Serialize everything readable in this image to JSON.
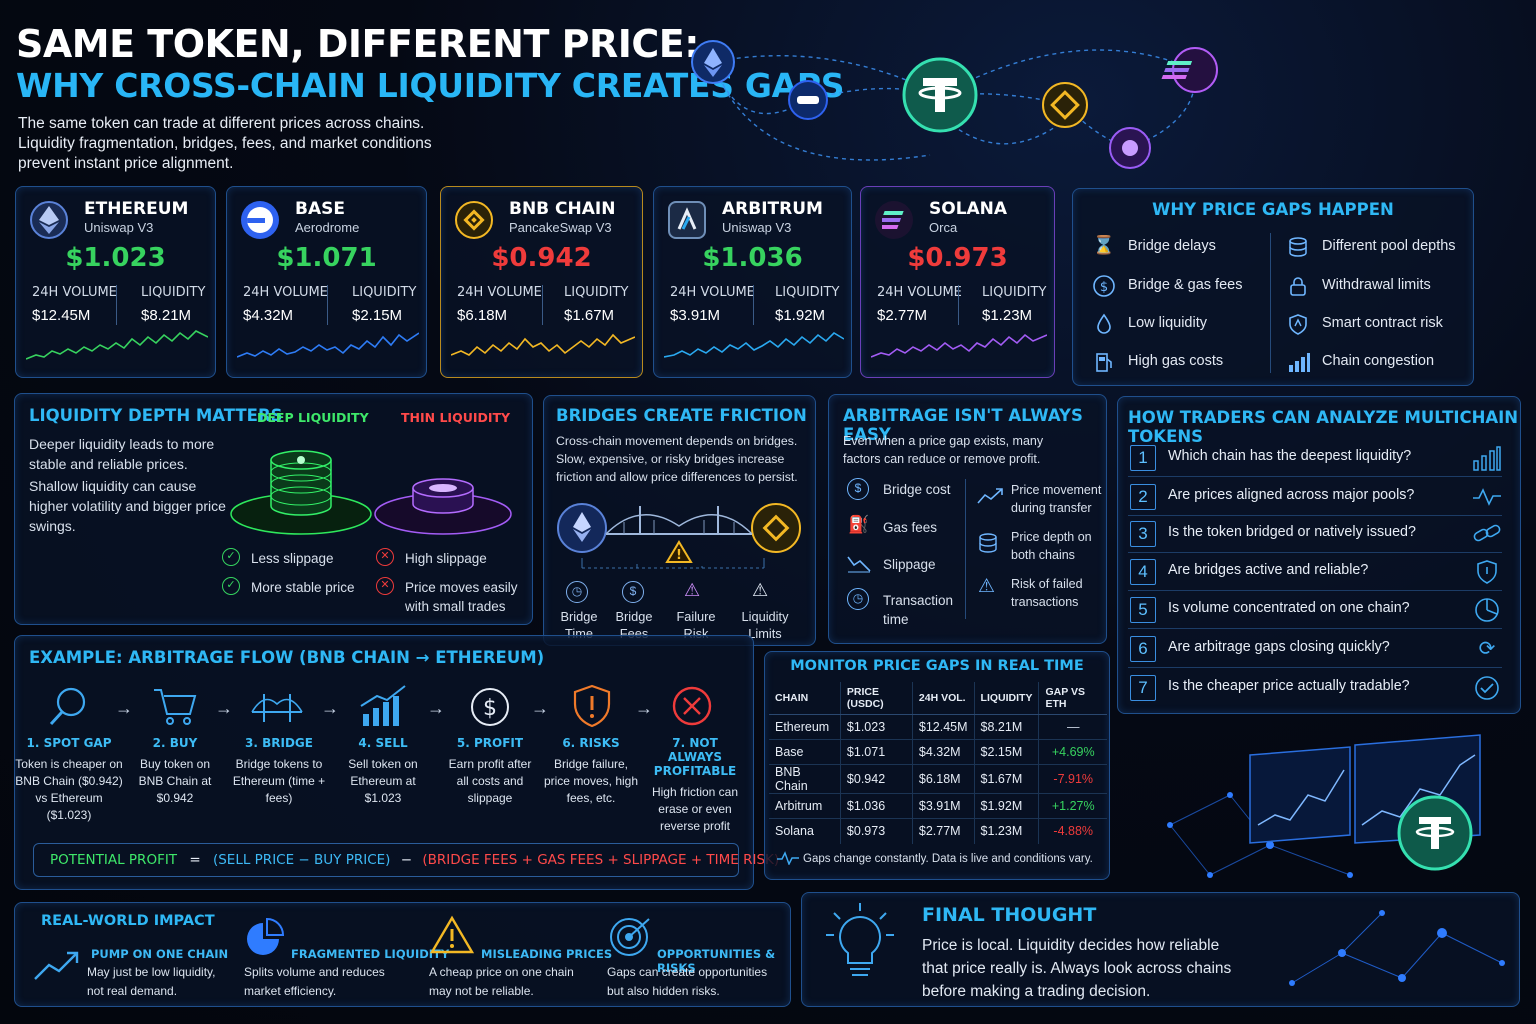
{
  "header": {
    "title_line1": "SAME TOKEN, DIFFERENT PRICE:",
    "title_line2": "WHY CROSS-CHAIN LIQUIDITY CREATES GAPS",
    "intro": "The same token can trade at different prices across chains. Liquidity fragmentation, bridges, fees, and market conditions prevent instant price alignment."
  },
  "chains": [
    {
      "name": "ETHEREUM",
      "dex": "Uniswap V3",
      "price": "$1.023",
      "price_color": "#37d35f",
      "vol_label": "24H VOLUME",
      "vol": "$12.45M",
      "liq_label": "LIQUIDITY",
      "liq": "$8.21M",
      "spark_color": "#37d35f",
      "border": "#2a5c9a"
    },
    {
      "name": "BASE",
      "dex": "Aerodrome",
      "price": "$1.071",
      "price_color": "#37d35f",
      "vol_label": "24H VOLUME",
      "vol": "$4.32M",
      "liq_label": "LIQUIDITY",
      "liq": "$2.15M",
      "spark_color": "#2e7cf6",
      "border": "#2a5c9a"
    },
    {
      "name": "BNB CHAIN",
      "dex": "PancakeSwap V3",
      "price": "$0.942",
      "price_color": "#ef3b3b",
      "vol_label": "24H VOLUME",
      "vol": "$6.18M",
      "liq_label": "LIQUIDITY",
      "liq": "$1.67M",
      "spark_color": "#f3b824",
      "border": "#b88a1e"
    },
    {
      "name": "ARBITRUM",
      "dex": "Uniswap V3",
      "price": "$1.036",
      "price_color": "#37d35f",
      "vol_label": "24H VOLUME",
      "vol": "$3.91M",
      "liq_label": "LIQUIDITY",
      "liq": "$1.92M",
      "spark_color": "#2aa9f0",
      "border": "#2a5c9a"
    },
    {
      "name": "SOLANA",
      "dex": "Orca",
      "price": "$0.973",
      "price_color": "#ef3b3b",
      "vol_label": "24H VOLUME",
      "vol": "$2.77M",
      "liq_label": "LIQUIDITY",
      "liq": "$1.23M",
      "spark_color": "#a35cf5",
      "border": "#7a3fc4"
    }
  ],
  "why": {
    "title": "WHY PRICE GAPS HAPPEN",
    "left": [
      {
        "icon": "hourglass-icon",
        "label": "Bridge delays"
      },
      {
        "icon": "dollar-icon",
        "label": "Bridge & gas fees"
      },
      {
        "icon": "droplet-icon",
        "label": "Low liquidity"
      },
      {
        "icon": "gas-pump-icon",
        "label": "High gas costs"
      }
    ],
    "right": [
      {
        "icon": "coin-stack-icon",
        "label": "Different pool depths"
      },
      {
        "icon": "lock-icon",
        "label": "Withdrawal limits"
      },
      {
        "icon": "shield-icon",
        "label": "Smart contract risk"
      },
      {
        "icon": "bar-chart-icon",
        "label": "Chain congestion"
      }
    ]
  },
  "liquidity": {
    "title": "LIQUIDITY DEPTH MATTERS",
    "p1": "Deeper liquidity leads to more stable and reliable prices.",
    "p2": "Shallow liquidity can cause higher volatility and bigger price swings.",
    "deep_label": "DEEP LIQUIDITY",
    "thin_label": "THIN LIQUIDITY",
    "deep_points": [
      "Less slippage",
      "More stable price"
    ],
    "thin_points": [
      "High slippage",
      "Price moves easily with small trades"
    ]
  },
  "bridges": {
    "title": "BRIDGES CREATE FRICTION",
    "desc": "Cross-chain movement depends on bridges. Slow, expensive, or risky bridges increase friction and allow price differences to persist.",
    "items": [
      "Bridge Time",
      "Bridge Fees",
      "Failure Risk",
      "Liquidity Limits"
    ]
  },
  "arbitrage": {
    "title": "ARBITRAGE ISN'T ALWAYS EASY",
    "desc": "Even when a price gap exists, many factors can reduce or remove profit.",
    "left": [
      "Bridge cost",
      "Gas fees",
      "Slippage",
      "Transaction time"
    ],
    "right": [
      "Price movement during transfer",
      "Price depth on both chains",
      "Risk of failed transactions"
    ]
  },
  "analyze": {
    "title": "HOW TRADERS CAN ANALYZE MULTICHAIN TOKENS",
    "questions": [
      "Which chain has the deepest liquidity?",
      "Are prices aligned across major pools?",
      "Is the token bridged or natively issued?",
      "Are bridges active and reliable?",
      "Is volume concentrated on one chain?",
      "Are arbitrage gaps closing quickly?",
      "Is the cheaper price actually tradable?"
    ],
    "numbers": [
      "1",
      "2",
      "3",
      "4",
      "5",
      "6",
      "7"
    ]
  },
  "flow": {
    "title": "EXAMPLE: ARBITRAGE FLOW  (BNB CHAIN → ETHEREUM)",
    "steps": [
      {
        "title": "1. SPOT GAP",
        "desc": "Token is cheaper on BNB Chain ($0.942) vs Ethereum ($1.023)"
      },
      {
        "title": "2. BUY",
        "desc": "Buy token on BNB Chain at $0.942"
      },
      {
        "title": "3. BRIDGE",
        "desc": "Bridge tokens to Ethereum (time + fees)"
      },
      {
        "title": "4. SELL",
        "desc": "Sell token on Ethereum at $1.023"
      },
      {
        "title": "5. PROFIT",
        "desc": "Earn profit after all costs and slippage"
      },
      {
        "title": "6. RISKS",
        "desc": "Bridge failure, price moves, high fees, etc."
      },
      {
        "title": "7. NOT ALWAYS PROFITABLE",
        "desc": "High friction can erase or even reverse profit"
      }
    ],
    "formula_label": "POTENTIAL PROFIT",
    "formula_eq": "=",
    "formula_mid": "(SELL PRICE − BUY PRICE)",
    "formula_minus": "−",
    "formula_costs": "(BRIDGE FEES + GAS FEES + SLIPPAGE + TIME RISK)"
  },
  "monitor": {
    "title": "MONITOR PRICE GAPS IN REAL TIME",
    "headers": [
      "CHAIN",
      "PRICE (USDC)",
      "24H VOL.",
      "LIQUIDITY",
      "GAP VS ETH"
    ],
    "rows": [
      [
        "Ethereum",
        "$1.023",
        "$12.45M",
        "$8.21M",
        "—"
      ],
      [
        "Base",
        "$1.071",
        "$4.32M",
        "$2.15M",
        "+4.69%"
      ],
      [
        "BNB Chain",
        "$0.942",
        "$6.18M",
        "$1.67M",
        "-7.91%"
      ],
      [
        "Arbitrum",
        "$1.036",
        "$3.91M",
        "$1.92M",
        "+1.27%"
      ],
      [
        "Solana",
        "$0.973",
        "$2.77M",
        "$1.23M",
        "-4.88%"
      ]
    ],
    "gap_colors": [
      "#c9d3e2",
      "#37d35f",
      "#ef3b3b",
      "#37d35f",
      "#ef3b3b"
    ],
    "note": "Gaps change constantly. Data is live and conditions vary."
  },
  "impact": {
    "title": "REAL-WORLD IMPACT",
    "items": [
      {
        "title": "PUMP ON ONE CHAIN",
        "desc": "May just be low liquidity, not real demand."
      },
      {
        "title": "FRAGMENTED LIQUIDITY",
        "desc": "Splits volume and reduces market efficiency."
      },
      {
        "title": "MISLEADING PRICES",
        "desc": "A cheap price on one chain may not be reliable."
      },
      {
        "title": "OPPORTUNITIES & RISKS",
        "desc": "Gaps can create opportunities but also hidden risks."
      }
    ]
  },
  "final": {
    "title": "FINAL THOUGHT",
    "text": "Price is local. Liquidity decides how reliable that price really is. Always look across chains before making a trading decision."
  }
}
